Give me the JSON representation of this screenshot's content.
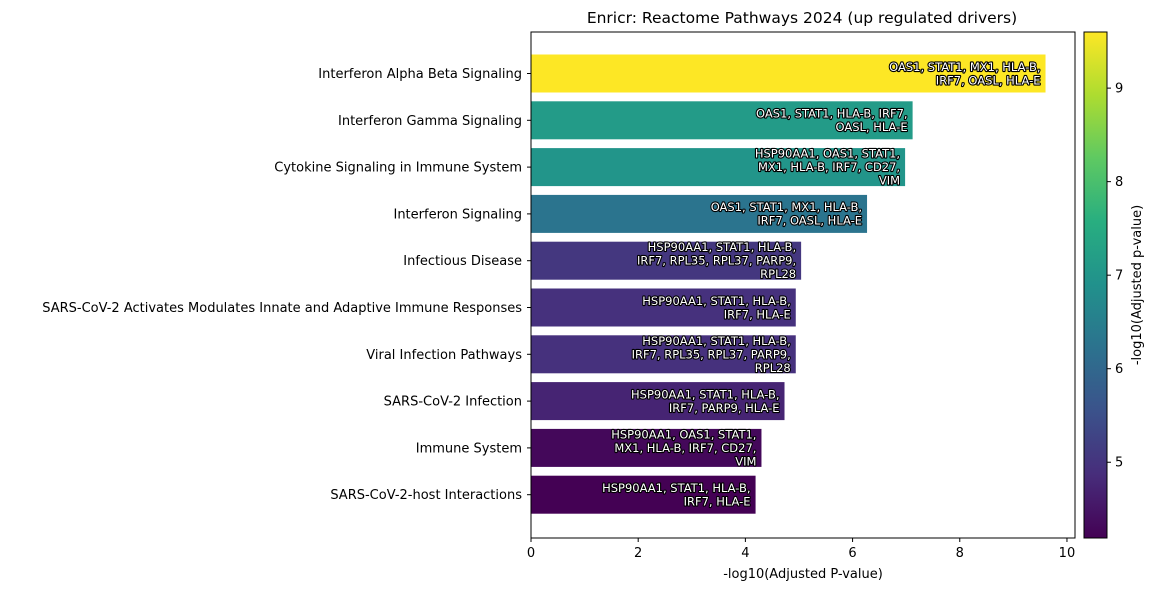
{
  "chart_data": {
    "type": "bar",
    "orientation": "horizontal",
    "title": "Enricr: Reactome Pathways 2024 (up regulated drivers)",
    "xlabel": "-log10(Adjusted P-value)",
    "ylabel": "",
    "xlim": [
      0,
      10.15
    ],
    "xticks": [
      "0",
      "2",
      "4",
      "6",
      "8",
      "10"
    ],
    "grid": false,
    "categories": [
      "Interferon Alpha Beta Signaling",
      "Interferon Gamma Signaling",
      "Cytokine Signaling in Immune System",
      "Interferon Signaling",
      "Infectious Disease",
      "SARS-CoV-2 Activates Modulates Innate and Adaptive Immune Responses",
      "Viral Infection Pathways",
      "SARS-CoV-2 Infection",
      "Immune System",
      "SARS-CoV-2-host Interactions"
    ],
    "values": [
      9.6,
      7.12,
      6.98,
      6.27,
      5.04,
      4.94,
      4.94,
      4.73,
      4.3,
      4.19
    ],
    "bar_labels": [
      [
        "OAS1, STAT1, MX1, HLA-B,",
        "IRF7, OASL, HLA-E"
      ],
      [
        "OAS1, STAT1, HLA-B, IRF7,",
        "OASL, HLA-E"
      ],
      [
        "HSP90AA1, OAS1, STAT1,",
        "MX1, HLA-B, IRF7, CD27,",
        "VIM"
      ],
      [
        "OAS1, STAT1, MX1, HLA-B,",
        "IRF7, OASL, HLA-E"
      ],
      [
        "HSP90AA1, STAT1, HLA-B,",
        "IRF7, RPL35, RPL37, PARP9,",
        "RPL28"
      ],
      [
        "HSP90AA1, STAT1, HLA-B,",
        "IRF7, HLA-E"
      ],
      [
        "HSP90AA1, STAT1, HLA-B,",
        "IRF7, RPL35, RPL37, PARP9,",
        "RPL28"
      ],
      [
        "HSP90AA1, STAT1, HLA-B,",
        "IRF7, PARP9, HLA-E"
      ],
      [
        "HSP90AA1, OAS1, STAT1,",
        "MX1, HLA-B, IRF7, CD27,",
        "VIM"
      ],
      [
        "HSP90AA1, STAT1, HLA-B,",
        "IRF7, HLA-E"
      ]
    ],
    "colormap": "viridis",
    "colorbar": {
      "label": "-log10(Adjusted p-value)",
      "min": 4.19,
      "max": 9.6,
      "ticks": [
        "5",
        "6",
        "7",
        "8",
        "9"
      ],
      "tick_values": [
        5,
        6,
        7,
        8,
        9
      ],
      "placement": "right"
    }
  }
}
